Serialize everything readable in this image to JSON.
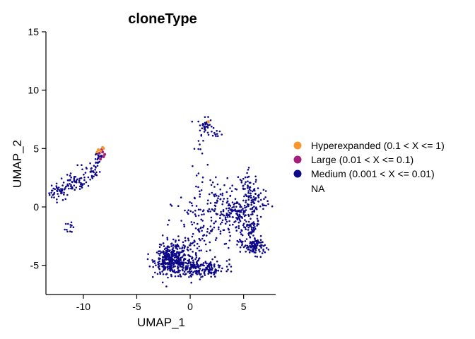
{
  "chart_data": {
    "type": "scatter",
    "title": "cloneType",
    "xlabel": "UMAP_1",
    "ylabel": "UMAP_2",
    "xlim": [
      -13.5,
      8
    ],
    "ylim": [
      -7.5,
      15
    ],
    "xticks": [
      -10,
      -5,
      0,
      5
    ],
    "yticks": [
      -5,
      0,
      5,
      10,
      15
    ],
    "grid": false,
    "legend_position": "right",
    "legend": [
      {
        "label": "Hyperexpanded (0.1 < X <= 1)",
        "color": "#F7952F"
      },
      {
        "label": "Large (0.01 < X <= 0.1)",
        "color": "#A31F7A"
      },
      {
        "label": "Medium (0.001 < X <= 0.01)",
        "color": "#0D0887"
      },
      {
        "label": "NA",
        "color": ""
      }
    ],
    "series": [
      {
        "name": "Medium (0.001 < X <= 0.01)",
        "color": "#0D0887",
        "clusters": [
          {
            "cx": -12.3,
            "cy": 1.3,
            "sx": 0.55,
            "sy": 0.35,
            "n": 50
          },
          {
            "cx": -10.8,
            "cy": 2.0,
            "sx": 0.6,
            "sy": 0.35,
            "n": 50
          },
          {
            "cx": -9.4,
            "cy": 3.1,
            "sx": 0.5,
            "sy": 0.45,
            "n": 35
          },
          {
            "cx": -8.6,
            "cy": 4.2,
            "sx": 0.25,
            "sy": 0.35,
            "n": 20
          },
          {
            "cx": -11.2,
            "cy": -1.6,
            "sx": 0.25,
            "sy": 0.4,
            "n": 12
          },
          {
            "cx": 1.4,
            "cy": 6.9,
            "sx": 0.35,
            "sy": 0.35,
            "n": 40
          },
          {
            "cx": 2.5,
            "cy": 6.3,
            "sx": 0.25,
            "sy": 0.25,
            "n": 8
          },
          {
            "cx": 0.8,
            "cy": 5.3,
            "sx": 0.2,
            "sy": 0.45,
            "n": 7
          },
          {
            "cx": -1.8,
            "cy": -4.6,
            "sx": 0.75,
            "sy": 0.55,
            "n": 330
          },
          {
            "cx": 0.3,
            "cy": -5.2,
            "sx": 1.0,
            "sy": 0.45,
            "n": 160
          },
          {
            "cx": 1.8,
            "cy": -5.3,
            "sx": 0.45,
            "sy": 0.35,
            "n": 55
          },
          {
            "cx": -0.9,
            "cy": -3.4,
            "sx": 1.0,
            "sy": 0.5,
            "n": 60
          },
          {
            "cx": 1.5,
            "cy": -1.7,
            "sx": 1.6,
            "sy": 1.3,
            "n": 95
          },
          {
            "cx": 4.2,
            "cy": -0.6,
            "sx": 1.0,
            "sy": 0.6,
            "n": 140
          },
          {
            "cx": 5.6,
            "cy": 1.2,
            "sx": 0.45,
            "sy": 0.9,
            "n": 75
          },
          {
            "cx": 6.3,
            "cy": 0.3,
            "sx": 0.5,
            "sy": 0.8,
            "n": 40
          },
          {
            "cx": 6.1,
            "cy": -3.4,
            "sx": 0.45,
            "sy": 0.35,
            "n": 95
          },
          {
            "cx": 5.7,
            "cy": -2.0,
            "sx": 0.35,
            "sy": 0.55,
            "n": 45
          },
          {
            "cx": 4.8,
            "cy": -3.2,
            "sx": 0.35,
            "sy": 0.3,
            "n": 20
          },
          {
            "cx": 2.3,
            "cy": 1.0,
            "sx": 1.4,
            "sy": 1.0,
            "n": 70
          },
          {
            "cx": 3.5,
            "cy": -5.0,
            "sx": 0.45,
            "sy": 0.35,
            "n": 10
          }
        ]
      },
      {
        "name": "Large (0.01 < X <= 0.1)",
        "color": "#A31F7A",
        "points": [
          [
            -8.5,
            4.6
          ],
          [
            -8.3,
            4.9
          ],
          [
            -8.1,
            4.3
          ],
          [
            -8.4,
            4.1
          ],
          [
            -8.2,
            4.7
          ],
          [
            -8.0,
            4.5
          ]
        ]
      },
      {
        "name": "Hyperexpanded (0.1 < X <= 1)",
        "color": "#F7952F",
        "points": [
          [
            -8.6,
            4.9
          ],
          [
            -8.2,
            5.1
          ],
          [
            -8.4,
            4.8
          ],
          [
            -8.7,
            4.7
          ],
          [
            -8.1,
            5.0
          ],
          [
            1.7,
            7.3
          ]
        ]
      }
    ]
  }
}
